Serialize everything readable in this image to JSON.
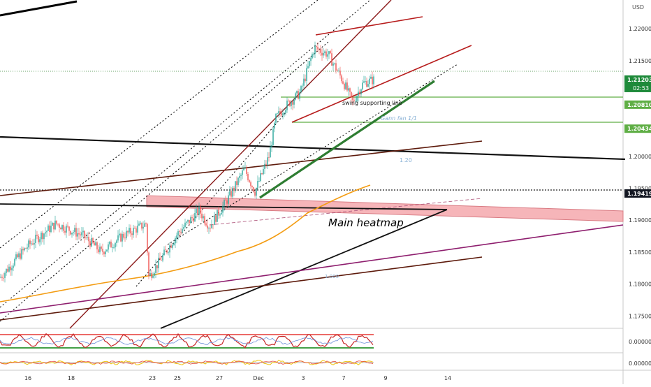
{
  "currency": "USD",
  "price_scale": {
    "ticks": [
      "1.22000",
      "1.21500",
      "1.20000",
      "1.19500",
      "1.19000",
      "1.18500",
      "1.18000",
      "1.17500"
    ],
    "badges": [
      {
        "label": "1.21203",
        "sub": "02:53",
        "color": "#1e8a3a"
      },
      {
        "label": "1.20810",
        "color": "#5fae45"
      },
      {
        "label": "1.20434",
        "color": "#5fae45"
      },
      {
        "label": "1.19419",
        "color": "#131722"
      }
    ]
  },
  "time_axis": [
    "16",
    "18",
    "23",
    "25",
    "27",
    "Dec",
    "3",
    "7",
    "9",
    "14"
  ],
  "annotations": {
    "swing": "swing supporting line",
    "gann": "Gann fan 1/1",
    "fib": "1.20",
    "heatmap": "Main heatmap",
    "fib2": "1.000"
  },
  "oscillators": [
    {
      "tick": "0.00000"
    },
    {
      "tick": "0.00000"
    }
  ],
  "colors": {
    "candle_up": "#26a69a",
    "candle_down": "#ef5350",
    "trend_red": "#b71c1c",
    "trend_dark": "#5d1a0b",
    "gann_green": "#2e7d32",
    "ma_orange": "#f39c12",
    "heatmap_fill": "#f4a3a8",
    "purple_line": "#8e1e6e",
    "black_line": "#000000"
  },
  "chart_data": {
    "type": "candlestick",
    "symbol_currency": "USD",
    "ylim": [
      1.1735,
      1.2245
    ],
    "price_labels": [
      1.22,
      1.215,
      1.2,
      1.195,
      1.19,
      1.185,
      1.18,
      1.175
    ],
    "marked_levels": [
      1.21203,
      1.2081,
      1.20434,
      1.19419
    ],
    "close_path": [
      [
        0,
        1.181
      ],
      [
        40,
        1.186
      ],
      [
        80,
        1.1895
      ],
      [
        120,
        1.1875
      ],
      [
        145,
        1.185
      ],
      [
        175,
        1.1875
      ],
      [
        210,
        1.1895
      ],
      [
        212,
        1.181
      ],
      [
        225,
        1.183
      ],
      [
        255,
        1.188
      ],
      [
        285,
        1.1915
      ],
      [
        300,
        1.189
      ],
      [
        330,
        1.194
      ],
      [
        350,
        1.198
      ],
      [
        365,
        1.1945
      ],
      [
        385,
        1.2
      ],
      [
        395,
        1.206
      ],
      [
        410,
        1.208
      ],
      [
        430,
        1.21
      ],
      [
        450,
        1.217
      ],
      [
        470,
        1.216
      ],
      [
        490,
        1.212
      ],
      [
        505,
        1.2085
      ],
      [
        520,
        1.2115
      ],
      [
        535,
        1.212
      ]
    ]
  }
}
